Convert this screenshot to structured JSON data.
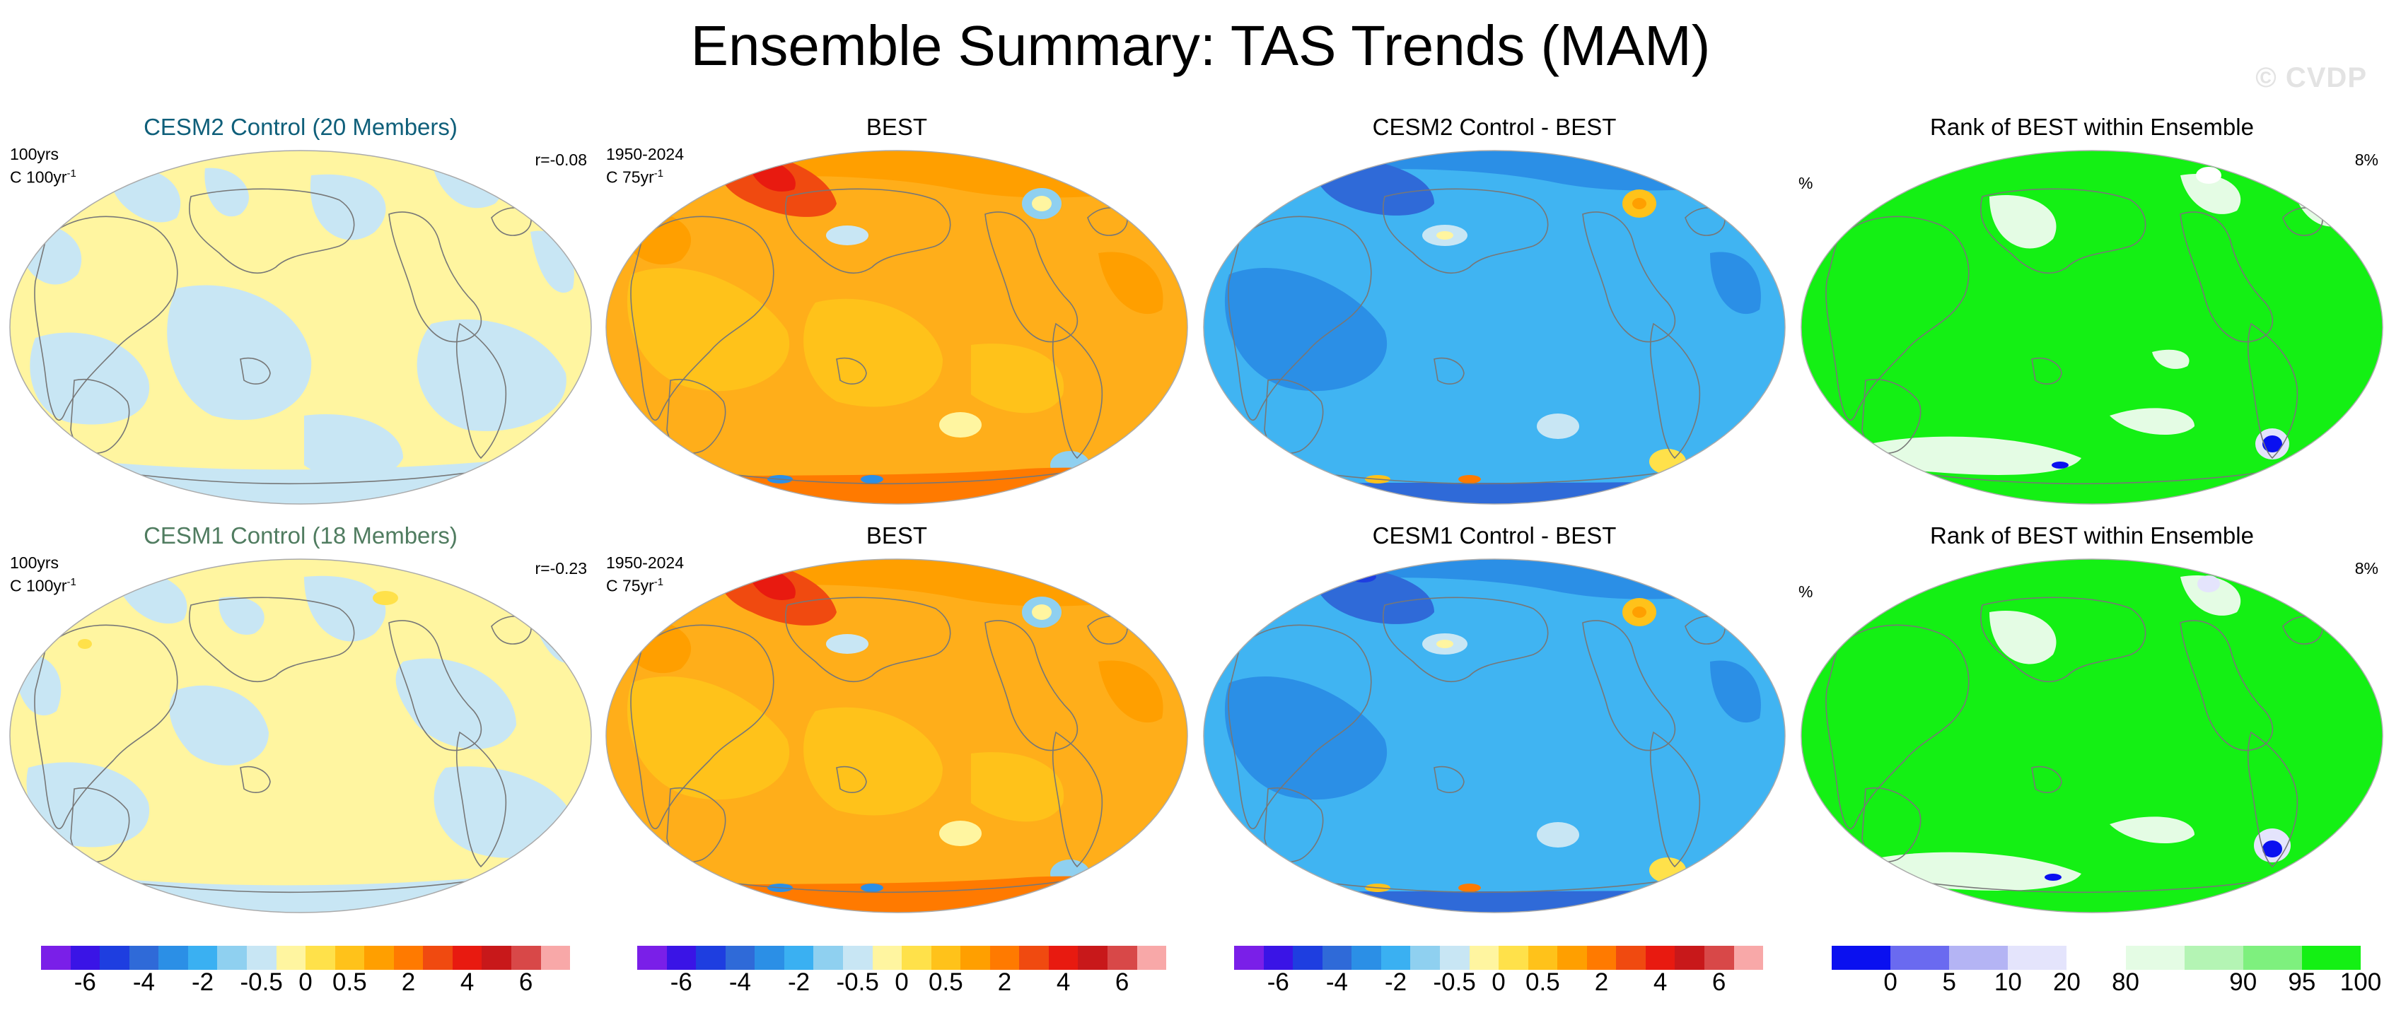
{
  "title": "Ensemble Summary: TAS Trends (MAM)",
  "watermark": "© CVDP",
  "rows": [
    {
      "ensemble": {
        "title": "CESM2 Control (20 Members)",
        "years": "100yrs",
        "units": "C 100yr",
        "units_sup": "-1",
        "corr": "r=-0.08"
      },
      "obs": {
        "title": "BEST",
        "years": "1950-2024",
        "units": "C 75yr",
        "units_sup": "-1"
      },
      "diff": {
        "title": "CESM2 Control - BEST"
      },
      "rank": {
        "title": "Rank of BEST within Ensemble",
        "pct_label": "%",
        "pct_value": "8%"
      }
    },
    {
      "ensemble": {
        "title": "CESM1 Control (18 Members)",
        "years": "100yrs",
        "units": "C 100yr",
        "units_sup": "-1",
        "corr": "r=-0.23"
      },
      "obs": {
        "title": "BEST",
        "years": "1950-2024",
        "units": "C 75yr",
        "units_sup": "-1"
      },
      "diff": {
        "title": "CESM1 Control - BEST"
      },
      "rank": {
        "title": "Rank of BEST within Ensemble",
        "pct_label": "%",
        "pct_value": "8%"
      }
    }
  ],
  "colorbar_trend": {
    "colors": [
      "#7a1fe8",
      "#3a14e6",
      "#1e3ee0",
      "#2f6ad8",
      "#2b8fe6",
      "#3ab0f2",
      "#8fd0f0",
      "#c8e6f4",
      "#fff5a0",
      "#ffe14a",
      "#ffc21a",
      "#ff9f00",
      "#ff7a00",
      "#f04a10",
      "#e81a10",
      "#c8181a",
      "#d84848",
      "#f8a8a8"
    ],
    "ticks": [
      "-6",
      "-4",
      "-2",
      "-0.5",
      "0",
      "0.5",
      "2",
      "4",
      "6"
    ]
  },
  "colorbar_rank": {
    "colors": [
      "#0a10f0",
      "#6a6af0",
      "#b4b4f4",
      "#e4e4fc",
      "#ffffff",
      "#e4fce4",
      "#b4f4b4",
      "#7ef07e",
      "#14f014"
    ],
    "ticks": [
      "0",
      "5",
      "10",
      "20",
      "80",
      "90",
      "95",
      "100"
    ]
  },
  "colors": {
    "continent_line": "#777777",
    "ensemble_fill": "#fff5a0",
    "ensemble_blue": "#c8e6f4",
    "obs_base": "#ffae1a",
    "diff_base": "#40b4f2",
    "rank_base": "#14f014"
  }
}
